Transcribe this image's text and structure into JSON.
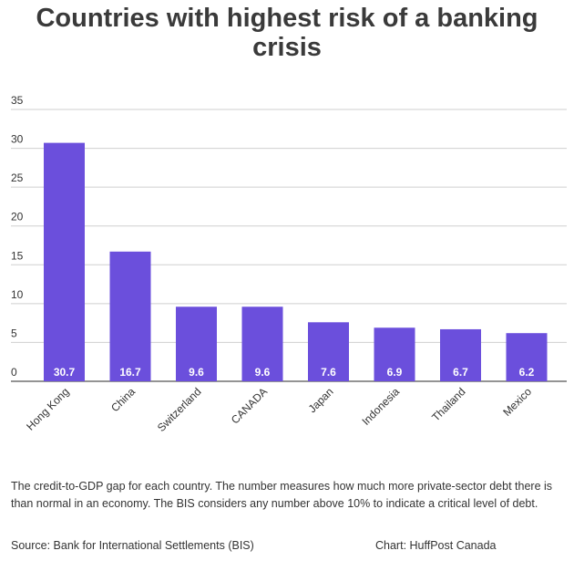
{
  "title_lines": [
    "Countries with highest risk of a banking",
    "crisis"
  ],
  "chart_data": {
    "type": "bar",
    "categories": [
      "Hong Kong",
      "China",
      "Switzerland",
      "CANADA",
      "Japan",
      "Indonesia",
      "Thailand",
      "Mexico"
    ],
    "values": [
      30.7,
      16.7,
      9.6,
      9.6,
      7.6,
      6.9,
      6.7,
      6.2
    ],
    "data_labels": [
      "30.7",
      "16.7",
      "9.6",
      "9.6",
      "7.6",
      "6.9",
      "6.7",
      "6.2"
    ],
    "ylim": [
      0,
      35
    ],
    "yticks": [
      0,
      5,
      10,
      15,
      20,
      25,
      30,
      35
    ],
    "grid": true,
    "bar_color": "#6b4fdc",
    "xlabel": "",
    "ylabel": ""
  },
  "note": "The credit-to-GDP gap for each country. The number measures how much more private-sector debt there is than normal in an economy. The BIS considers any number above 10% to indicate a critical level of debt.",
  "source": "Source: Bank for International Settlements (BIS)",
  "credit": "Chart: HuffPost Canada"
}
